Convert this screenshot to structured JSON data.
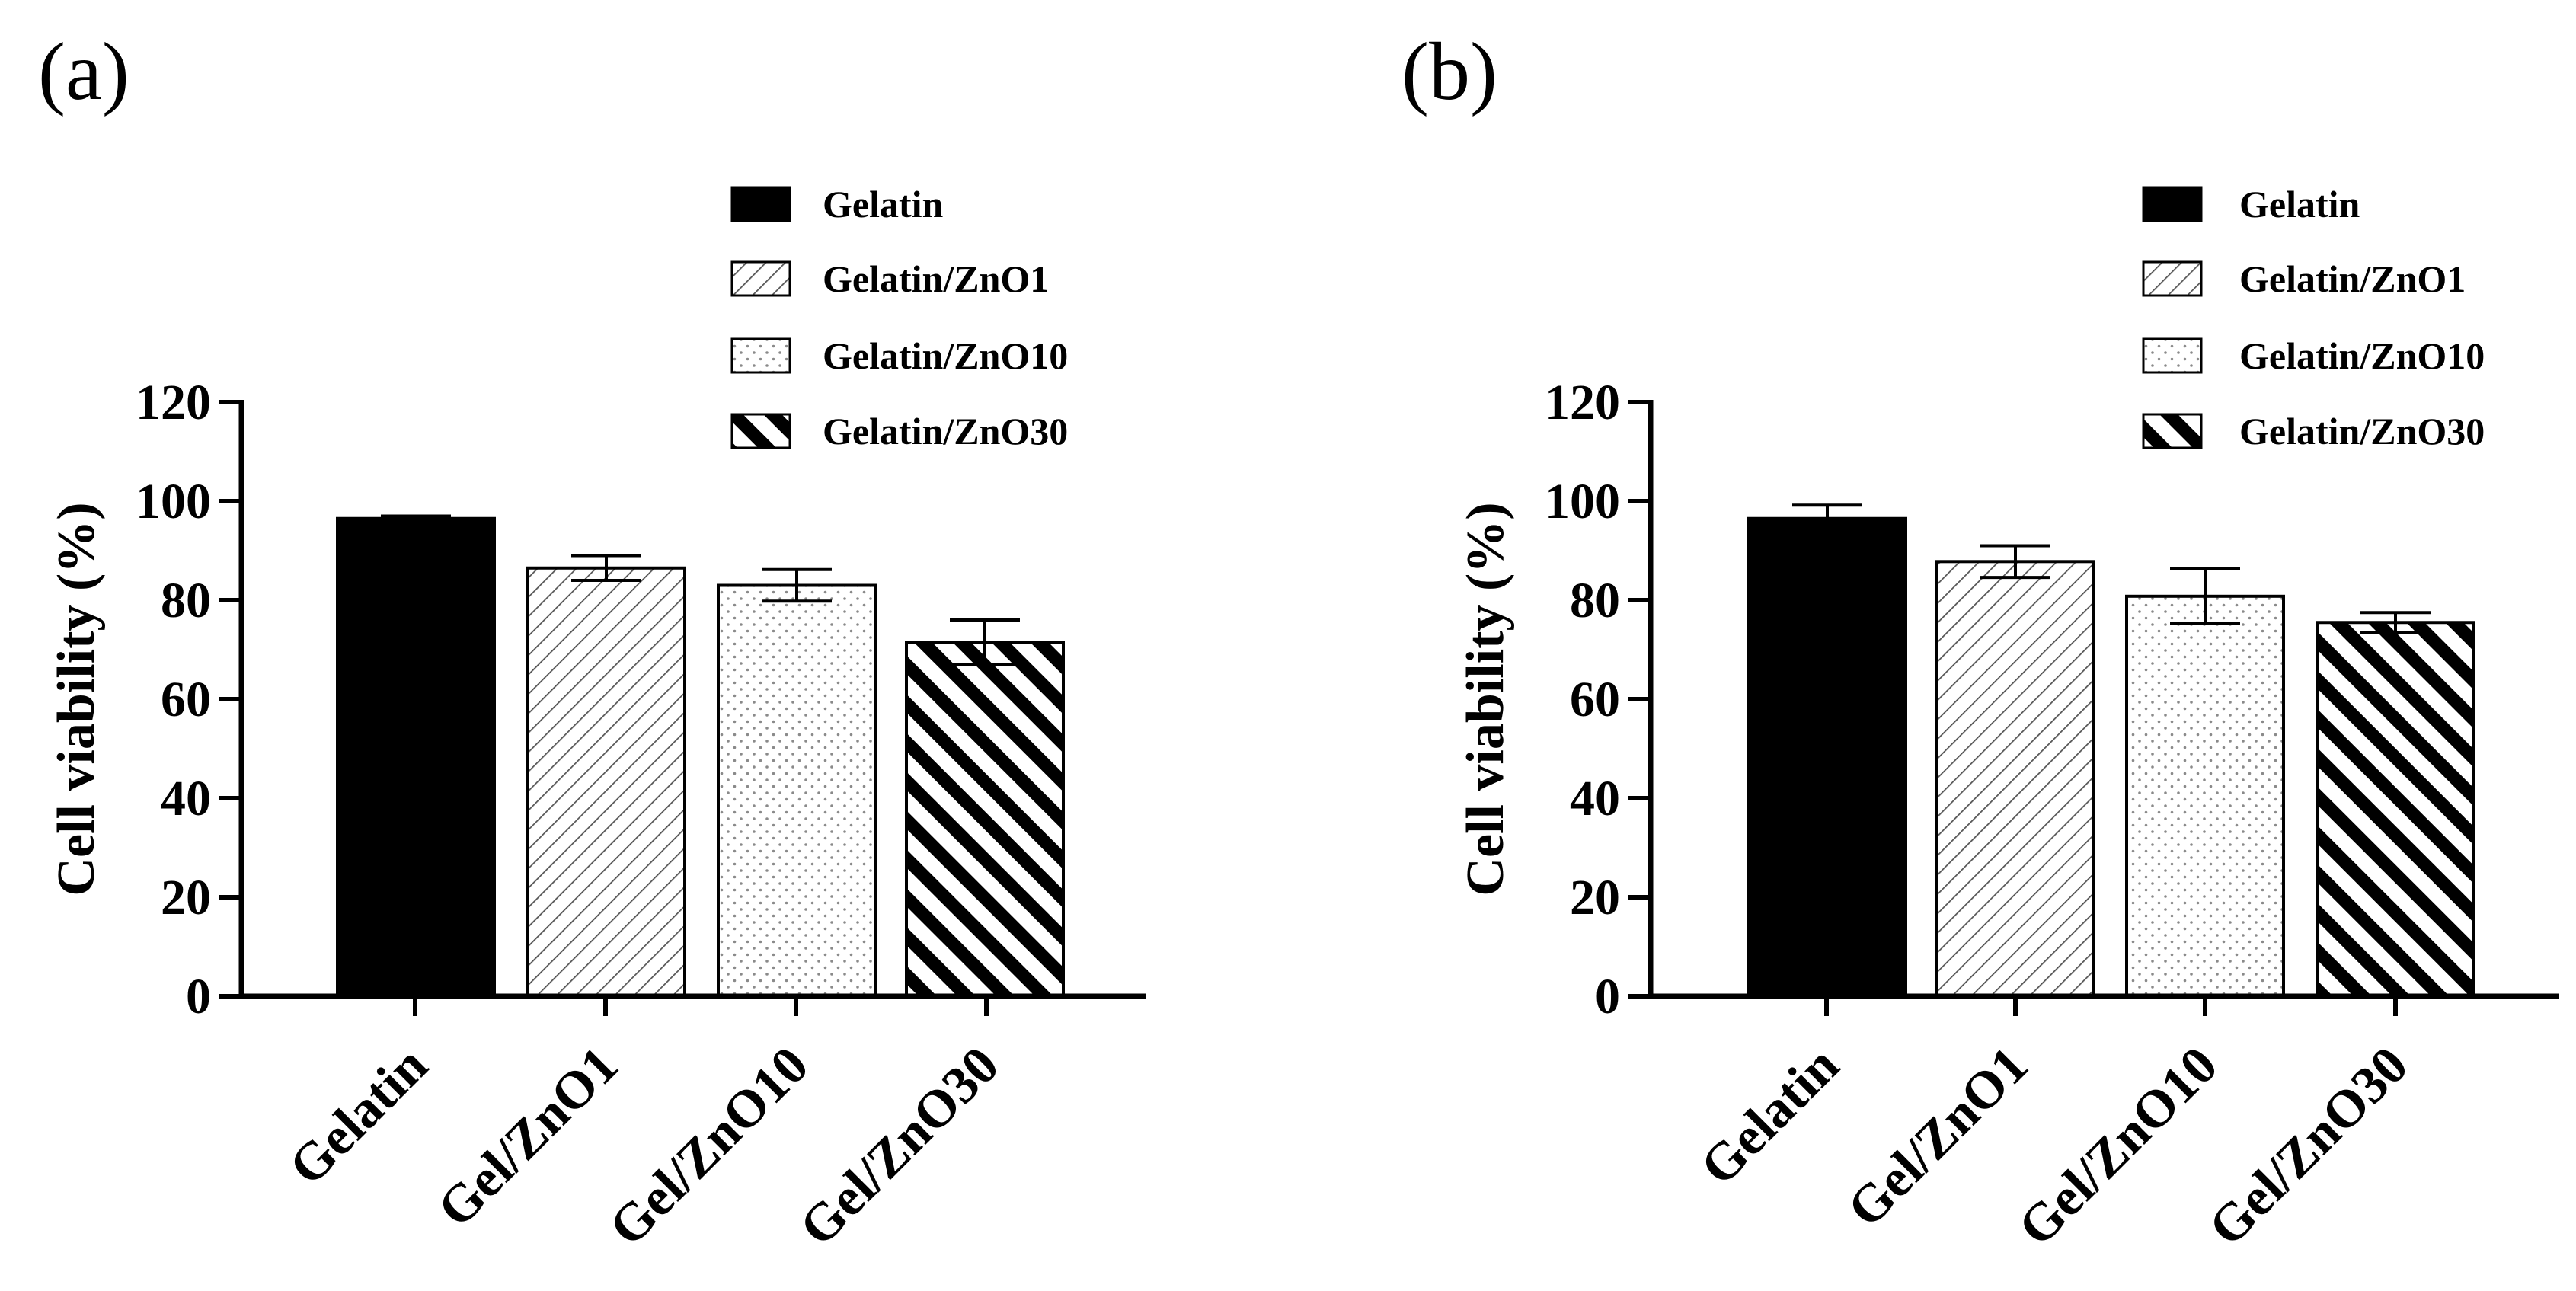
{
  "chart_data": [
    {
      "type": "bar",
      "panel_label": "(a)",
      "categories": [
        "Gelatin",
        "Gel/ZnO1",
        "Gel/ZnO10",
        "Gel/ZnO30"
      ],
      "values": [
        96.5,
        86.5,
        83,
        71.5
      ],
      "errors": [
        0.5,
        2.5,
        3.2,
        4.5
      ],
      "ylabel": "Cell viability (%)",
      "xlabel": "",
      "ylim": [
        0,
        120
      ],
      "yticks": [
        0,
        20,
        40,
        60,
        80,
        100,
        120
      ],
      "legend": {
        "placement": "top-right",
        "entries": [
          {
            "label": "Gelatin",
            "pattern": "solid"
          },
          {
            "label": "Gelatin/ZnO1",
            "pattern": "fine-diagonal"
          },
          {
            "label": "Gelatin/ZnO10",
            "pattern": "dots"
          },
          {
            "label": "Gelatin/ZnO30",
            "pattern": "bold-diagonal"
          }
        ]
      }
    },
    {
      "type": "bar",
      "panel_label": "(b)",
      "categories": [
        "Gelatin",
        "Gel/ZnO1",
        "Gel/ZnO10",
        "Gel/ZnO30"
      ],
      "values": [
        96.5,
        87.8,
        80.8,
        75.5
      ],
      "errors": [
        2.7,
        3.2,
        5.5,
        2.0
      ],
      "ylabel": "Cell viability (%)",
      "xlabel": "",
      "ylim": [
        0,
        120
      ],
      "yticks": [
        0,
        20,
        40,
        60,
        80,
        100,
        120
      ],
      "legend": {
        "placement": "top-right",
        "entries": [
          {
            "label": "Gelatin",
            "pattern": "solid"
          },
          {
            "label": "Gelatin/ZnO1",
            "pattern": "fine-diagonal"
          },
          {
            "label": "Gelatin/ZnO10",
            "pattern": "dots"
          },
          {
            "label": "Gelatin/ZnO30",
            "pattern": "bold-diagonal"
          }
        ]
      }
    }
  ],
  "colors": {
    "ink": "#000000",
    "background": "#ffffff",
    "dot": "#8a8a8a"
  }
}
